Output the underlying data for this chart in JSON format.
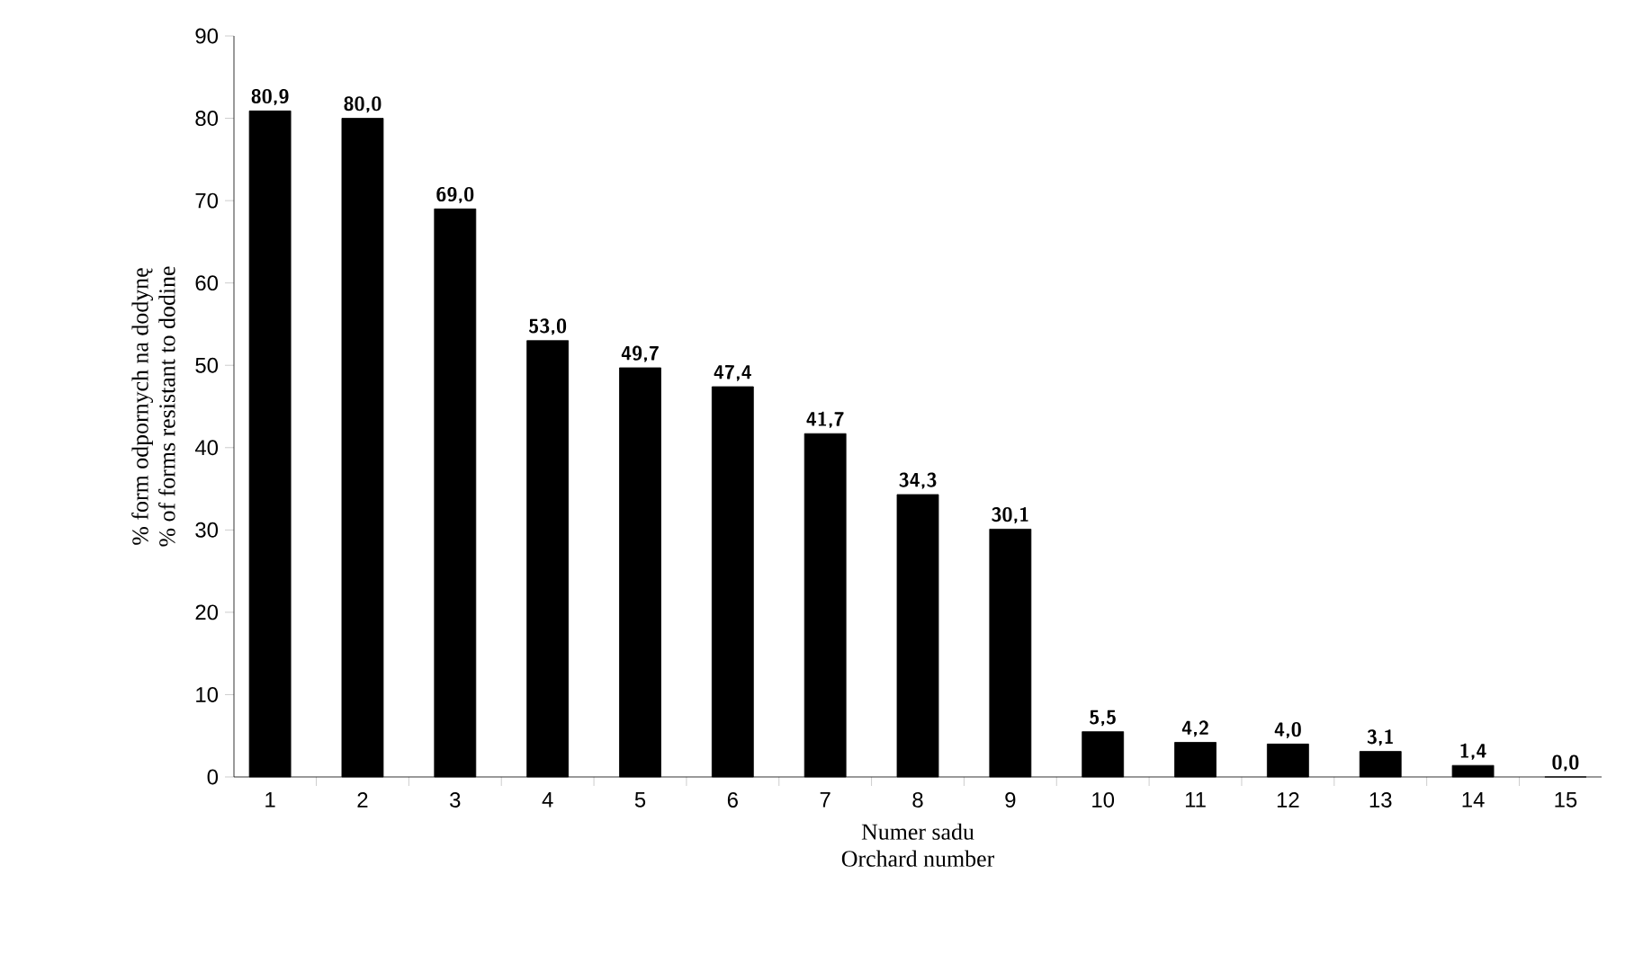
{
  "chart_data": {
    "type": "bar",
    "categories": [
      "1",
      "2",
      "3",
      "4",
      "5",
      "6",
      "7",
      "8",
      "9",
      "10",
      "11",
      "12",
      "13",
      "14",
      "15"
    ],
    "values": [
      80.9,
      80.0,
      69.0,
      53.0,
      49.7,
      47.4,
      41.7,
      34.3,
      30.1,
      5.5,
      4.2,
      4.0,
      3.1,
      1.4,
      0.0
    ],
    "value_labels": [
      "80,9",
      "80,0",
      "69,0",
      "53,0",
      "49,7",
      "47,4",
      "41,7",
      "34,3",
      "30,1",
      "5,5",
      "4,2",
      "4,0",
      "3,1",
      "1,4",
      "0,0"
    ],
    "color": "#000000",
    "ylim": [
      0,
      90
    ],
    "yticks": [
      0,
      10,
      20,
      30,
      40,
      50,
      60,
      70,
      80,
      90
    ],
    "xlabel": [
      "Numer sadu",
      "Orchard number"
    ],
    "ylabel": [
      "% form odpornych na dodynę",
      "% of forms resistant to dodine"
    ],
    "grid": false
  }
}
